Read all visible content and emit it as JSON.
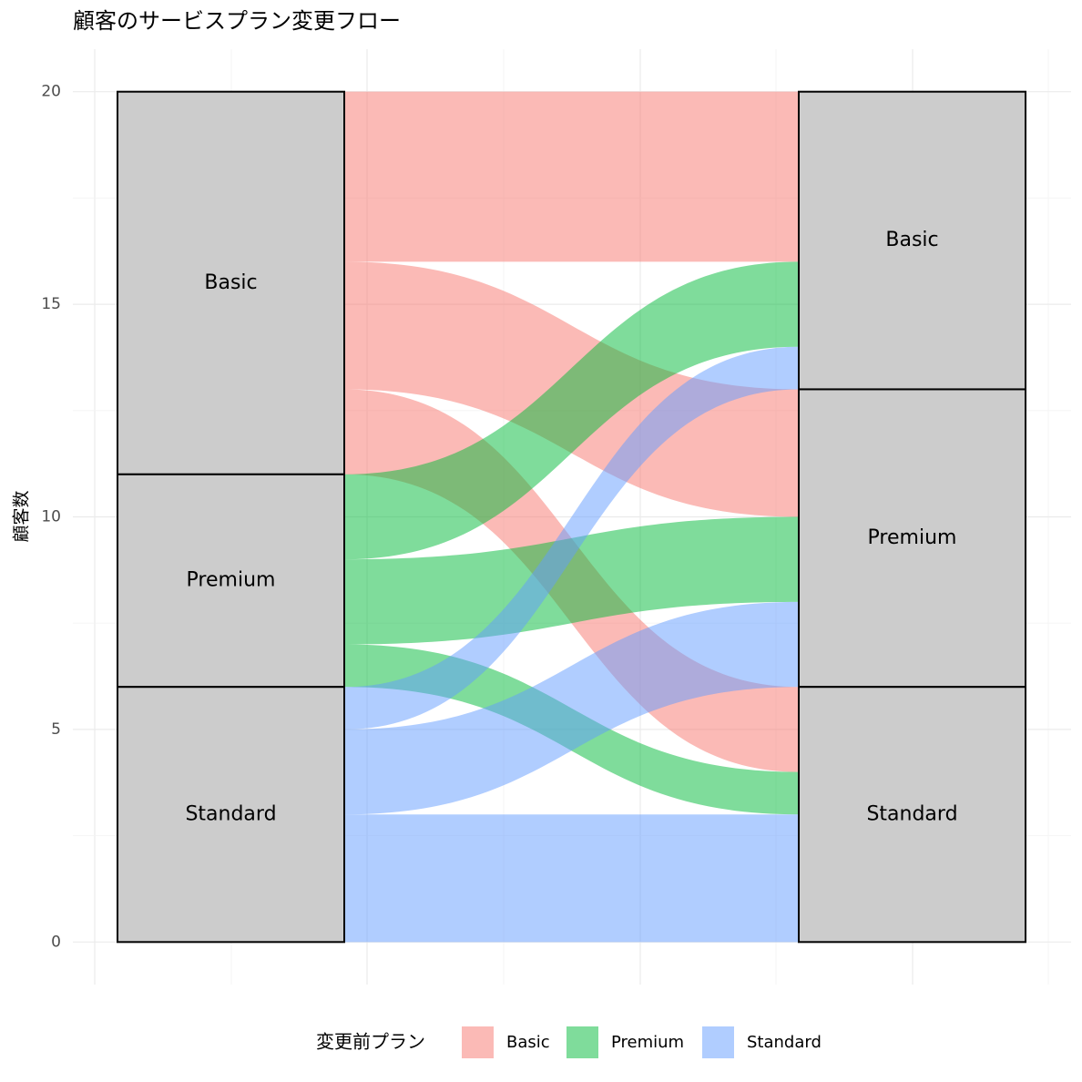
{
  "chart_data": {
    "type": "alluvial",
    "title": "顧客のサービスプラン変更フロー",
    "y_label": "顧客数",
    "legend_title": "変更前プラン",
    "strata": [
      {
        "name": "Basic",
        "color": "#F8766D"
      },
      {
        "name": "Premium",
        "color": "#00BA38"
      },
      {
        "name": "Standard",
        "color": "#619CFF"
      }
    ],
    "flows": [
      {
        "from": "Basic",
        "to": "Basic",
        "value": 4
      },
      {
        "from": "Basic",
        "to": "Premium",
        "value": 3
      },
      {
        "from": "Basic",
        "to": "Standard",
        "value": 2
      },
      {
        "from": "Premium",
        "to": "Basic",
        "value": 2
      },
      {
        "from": "Premium",
        "to": "Premium",
        "value": 2
      },
      {
        "from": "Premium",
        "to": "Standard",
        "value": 1
      },
      {
        "from": "Standard",
        "to": "Basic",
        "value": 1
      },
      {
        "from": "Standard",
        "to": "Premium",
        "value": 2
      },
      {
        "from": "Standard",
        "to": "Standard",
        "value": 3
      }
    ],
    "ylim": [
      -1,
      21
    ],
    "yticks": [
      0,
      5,
      10,
      15,
      20
    ],
    "grid": true,
    "fill_opacity": 0.5
  }
}
